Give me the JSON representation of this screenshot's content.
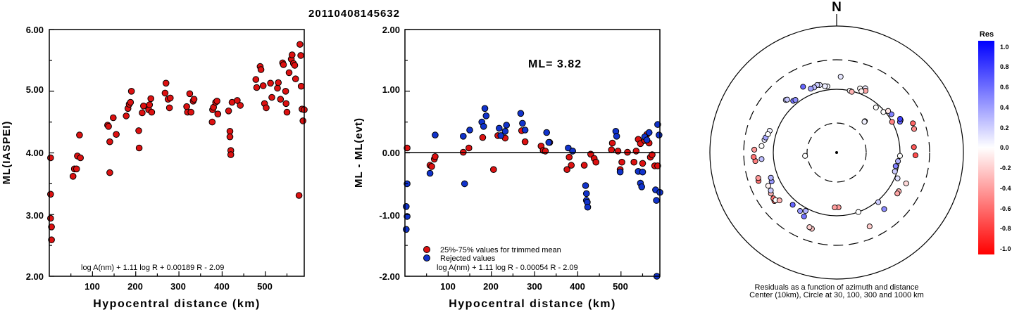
{
  "title": "20110408145632",
  "chart_data": [
    {
      "type": "scatter",
      "ylabel": "ML(IASPEI)",
      "xlabel": "Hypocentral distance (km)",
      "xlim": [
        0,
        590
      ],
      "ylim": [
        2.0,
        6.0
      ],
      "x_ticks": [
        "100",
        "200",
        "300",
        "400",
        "500"
      ],
      "y_ticks": [
        "2.00",
        "3.00",
        "4.00",
        "5.00",
        "6.00"
      ],
      "formula": "log A(nm) + 1.11 log R + 0.00189 R - 2.09",
      "series": [
        {
          "color": "#dd1111",
          "points": [
            [
              3,
              3.92
            ],
            [
              3,
              3.33
            ],
            [
              3,
              2.94
            ],
            [
              5,
              2.8
            ],
            [
              5,
              2.59
            ],
            [
              55,
              3.62
            ],
            [
              58,
              3.74
            ],
            [
              63,
              3.74
            ],
            [
              65,
              3.95
            ],
            [
              70,
              4.29
            ],
            [
              72,
              3.92
            ],
            [
              135,
              4.45
            ],
            [
              137,
              4.43
            ],
            [
              140,
              4.18
            ],
            [
              140,
              3.68
            ],
            [
              148,
              4.57
            ],
            [
              155,
              4.3
            ],
            [
              178,
              4.6
            ],
            [
              182,
              4.72
            ],
            [
              185,
              4.79
            ],
            [
              188,
              4.82
            ],
            [
              190,
              5.0
            ],
            [
              207,
              4.36
            ],
            [
              208,
              4.08
            ],
            [
              215,
              4.65
            ],
            [
              218,
              4.76
            ],
            [
              230,
              4.7
            ],
            [
              232,
              4.78
            ],
            [
              235,
              4.88
            ],
            [
              237,
              4.66
            ],
            [
              268,
              4.97
            ],
            [
              270,
              5.13
            ],
            [
              275,
              4.87
            ],
            [
              278,
              4.73
            ],
            [
              280,
              4.89
            ],
            [
              318,
              4.75
            ],
            [
              320,
              4.66
            ],
            [
              325,
              4.96
            ],
            [
              328,
              4.66
            ],
            [
              333,
              4.84
            ],
            [
              335,
              4.87
            ],
            [
              377,
              4.5
            ],
            [
              378,
              4.7
            ],
            [
              380,
              4.74
            ],
            [
              385,
              4.82
            ],
            [
              388,
              4.84
            ],
            [
              390,
              4.63
            ],
            [
              415,
              4.68
            ],
            [
              418,
              4.35
            ],
            [
              418,
              4.26
            ],
            [
              420,
              4.04
            ],
            [
              420,
              3.97
            ],
            [
              423,
              4.82
            ],
            [
              435,
              4.85
            ],
            [
              442,
              4.77
            ],
            [
              478,
              5.19
            ],
            [
              480,
              5.06
            ],
            [
              488,
              5.4
            ],
            [
              490,
              5.35
            ],
            [
              495,
              5.09
            ],
            [
              498,
              4.8
            ],
            [
              502,
              4.73
            ],
            [
              512,
              5.13
            ],
            [
              515,
              4.9
            ],
            [
              528,
              5.05
            ],
            [
              530,
              5.14
            ],
            [
              535,
              4.87
            ],
            [
              540,
              5.46
            ],
            [
              542,
              5.43
            ],
            [
              547,
              5.0
            ],
            [
              548,
              4.8
            ],
            [
              550,
              4.66
            ],
            [
              555,
              5.3
            ],
            [
              560,
              5.52
            ],
            [
              562,
              5.59
            ],
            [
              565,
              5.45
            ],
            [
              568,
              5.42
            ],
            [
              570,
              5.2
            ],
            [
              578,
              3.31
            ],
            [
              580,
              5.76
            ],
            [
              582,
              5.58
            ],
            [
              583,
              5.08
            ],
            [
              585,
              4.71
            ],
            [
              587,
              4.52
            ],
            [
              590,
              4.7
            ]
          ]
        }
      ]
    },
    {
      "type": "scatter",
      "ylabel": "ML - ML(evt)",
      "xlabel": "Hypocentral distance (km)",
      "xlim": [
        0,
        590
      ],
      "ylim": [
        -2.0,
        2.0
      ],
      "x_ticks": [
        "100",
        "200",
        "300",
        "400",
        "500"
      ],
      "y_ticks": [
        "-2.00",
        "-1.00",
        "0.00",
        "1.00",
        "2.00"
      ],
      "annotation": "ML= 3.82",
      "formula": "log A(nm) + 1.11 log R - 0.00054 R - 2.09",
      "legend": [
        {
          "label": "25%-75% values for trimmed mean",
          "color": "#dd1111"
        },
        {
          "label": "Rejected values",
          "color": "#1133cc"
        }
      ],
      "series": [
        {
          "name": "25%-75% values for trimmed mean",
          "color": "#dd1111",
          "points": [
            [
              5,
              0.08
            ],
            [
              58,
              -0.2
            ],
            [
              62,
              -0.22
            ],
            [
              68,
              -0.1
            ],
            [
              70,
              -0.06
            ],
            [
              135,
              0.01
            ],
            [
              148,
              0.08
            ],
            [
              180,
              0.25
            ],
            [
              205,
              -0.27
            ],
            [
              215,
              0.28
            ],
            [
              232,
              0.24
            ],
            [
              270,
              0.36
            ],
            [
              278,
              0.18
            ],
            [
              315,
              0.11
            ],
            [
              320,
              0.04
            ],
            [
              325,
              0.03
            ],
            [
              335,
              0.17
            ],
            [
              375,
              -0.27
            ],
            [
              380,
              -0.07
            ],
            [
              385,
              -0.2
            ],
            [
              388,
              0.03
            ],
            [
              415,
              -0.2
            ],
            [
              430,
              -0.02
            ],
            [
              438,
              -0.09
            ],
            [
              442,
              -0.15
            ],
            [
              478,
              0.05
            ],
            [
              480,
              0.16
            ],
            [
              493,
              0.03
            ],
            [
              498,
              -0.27
            ],
            [
              502,
              -0.15
            ],
            [
              515,
              0.01
            ],
            [
              530,
              -0.15
            ],
            [
              535,
              0.03
            ],
            [
              540,
              0.22
            ],
            [
              545,
              0.15
            ],
            [
              550,
              -0.17
            ],
            [
              555,
              0.2
            ],
            [
              560,
              0.3
            ],
            [
              565,
              0.16
            ],
            [
              568,
              -0.07
            ],
            [
              572,
              -0.03
            ],
            [
              578,
              -0.21
            ],
            [
              585,
              -0.21
            ]
          ]
        },
        {
          "name": "Rejected values",
          "color": "#1133cc",
          "points": [
            [
              3,
              -0.87
            ],
            [
              3,
              -1.24
            ],
            [
              5,
              -1.03
            ],
            [
              5,
              -0.5
            ],
            [
              58,
              -0.33
            ],
            [
              70,
              0.29
            ],
            [
              135,
              0.27
            ],
            [
              138,
              -0.5
            ],
            [
              150,
              0.37
            ],
            [
              178,
              0.5
            ],
            [
              182,
              0.43
            ],
            [
              185,
              0.72
            ],
            [
              188,
              0.6
            ],
            [
              218,
              0.4
            ],
            [
              222,
              0.28
            ],
            [
              232,
              0.35
            ],
            [
              235,
              0.45
            ],
            [
              268,
              0.64
            ],
            [
              272,
              0.48
            ],
            [
              278,
              0.37
            ],
            [
              328,
              0.33
            ],
            [
              333,
              0.17
            ],
            [
              378,
              0.08
            ],
            [
              388,
              0.03
            ],
            [
              418,
              -0.53
            ],
            [
              420,
              -0.66
            ],
            [
              420,
              -0.77
            ],
            [
              422,
              -0.8
            ],
            [
              423,
              -0.88
            ],
            [
              488,
              0.35
            ],
            [
              490,
              0.27
            ],
            [
              498,
              -0.31
            ],
            [
              540,
              -0.3
            ],
            [
              545,
              -0.49
            ],
            [
              548,
              -0.55
            ],
            [
              550,
              -0.31
            ],
            [
              555,
              0.26
            ],
            [
              560,
              0.21
            ],
            [
              565,
              0.33
            ],
            [
              580,
              -0.6
            ],
            [
              582,
              -0.77
            ],
            [
              583,
              -2.0
            ],
            [
              585,
              0.46
            ],
            [
              588,
              0.29
            ],
            [
              590,
              -0.64
            ]
          ]
        }
      ]
    },
    {
      "type": "scatter",
      "polar": true,
      "north_label": "N",
      "caption_line1": "Residuals as a function of azimuth and distance",
      "caption_line2": "Center (10km), Circle at 30, 100, 300 and 1000 km",
      "colorbar_title": "Res",
      "colorbar_ticks": [
        "1.0",
        "0.8",
        "0.6",
        "0.4",
        "0.2",
        "0.0",
        "-0.2",
        "-0.4",
        "-0.6",
        "-0.8",
        "-1.0"
      ],
      "points_azimuth_distance_residual": [
        [
          3,
          108,
          0.1
        ],
        [
          20,
          97,
          -0.02
        ],
        [
          -8,
          95,
          0.03
        ],
        [
          -10,
          96,
          0.07
        ],
        [
          -14,
          99,
          0.1
        ],
        [
          -16,
          100,
          0.2
        ],
        [
          -19,
          98,
          0.25
        ],
        [
          -22,
          98,
          0.38
        ],
        [
          -27,
          105,
          0.6
        ],
        [
          -44,
          104,
          0.2
        ],
        [
          -43,
          103,
          0.22
        ],
        [
          24,
          100,
          0.08
        ],
        [
          25,
          97,
          -0.35
        ],
        [
          22,
          94,
          -0.05
        ],
        [
          12,
          90,
          -0.02
        ],
        [
          14,
          89,
          -0.3
        ],
        [
          42,
          60,
          0.2
        ],
        [
          42,
          59,
          0.05
        ],
        [
          49,
          88,
          0.0
        ],
        [
          41,
          85,
          0.0
        ],
        [
          55,
          95,
          0.5
        ],
        [
          63,
          102,
          0.58
        ],
        [
          64,
          100,
          0.62
        ],
        [
          62,
          102,
          0.75
        ],
        [
          51,
          94,
          -0.1
        ],
        [
          61,
          90,
          -0.5
        ],
        [
          69,
          116,
          -0.6
        ],
        [
          73,
          115,
          -0.45
        ],
        [
          86,
          110,
          -0.65
        ],
        [
          92,
          112,
          -0.7
        ],
        [
          93,
          90,
          0.0
        ],
        [
          98,
          88,
          0.3
        ],
        [
          103,
          86,
          0.5
        ],
        [
          108,
          87,
          0.2
        ],
        [
          113,
          94,
          0.12
        ],
        [
          122,
          104,
          -0.3
        ],
        [
          124,
          104,
          -0.35
        ],
        [
          114,
          108,
          -0.15
        ],
        [
          156,
          115,
          -0.2
        ],
        [
          140,
          105,
          0.45
        ],
        [
          160,
          90,
          0.0
        ],
        [
          140,
          92,
          0.2
        ],
        [
          178,
          78,
          -0.4
        ],
        [
          182,
          78,
          -0.38
        ],
        [
          -153,
          102,
          0.55
        ],
        [
          -152,
          94,
          0.3
        ],
        [
          -148,
          98,
          0.4
        ],
        [
          -140,
          97,
          0.6
        ],
        [
          -162,
          114,
          -0.22
        ],
        [
          -160,
          113,
          -0.18
        ],
        [
          -114,
          101,
          0.4
        ],
        [
          -111,
          100,
          0.3
        ],
        [
          -128,
          112,
          -0.6
        ],
        [
          -126,
          111,
          -0.55
        ],
        [
          -128,
          110,
          0.0
        ],
        [
          -130,
          106,
          -0.3
        ],
        [
          -122,
          110,
          -0.3
        ],
        [
          -120,
          108,
          0.2
        ],
        [
          -110,
          118,
          -0.55
        ],
        [
          -108,
          117,
          -0.4
        ],
        [
          -116,
          108,
          -0.05
        ],
        [
          -96,
          116,
          -0.5
        ],
        [
          -93,
          118,
          -0.55
        ],
        [
          -88,
          117,
          -0.4
        ],
        [
          -95,
          107,
          0.25
        ],
        [
          -85,
          107,
          0.0
        ],
        [
          -80,
          104,
          0.1
        ],
        [
          -78,
          103,
          0.35
        ],
        [
          -72,
          100,
          0.05
        ],
        [
          -75,
          101,
          0.0
        ],
        [
          -96,
          45,
          0.0
        ],
        [
          -40,
          96,
          0.55
        ],
        [
          -38,
          95,
          0.45
        ]
      ]
    }
  ]
}
